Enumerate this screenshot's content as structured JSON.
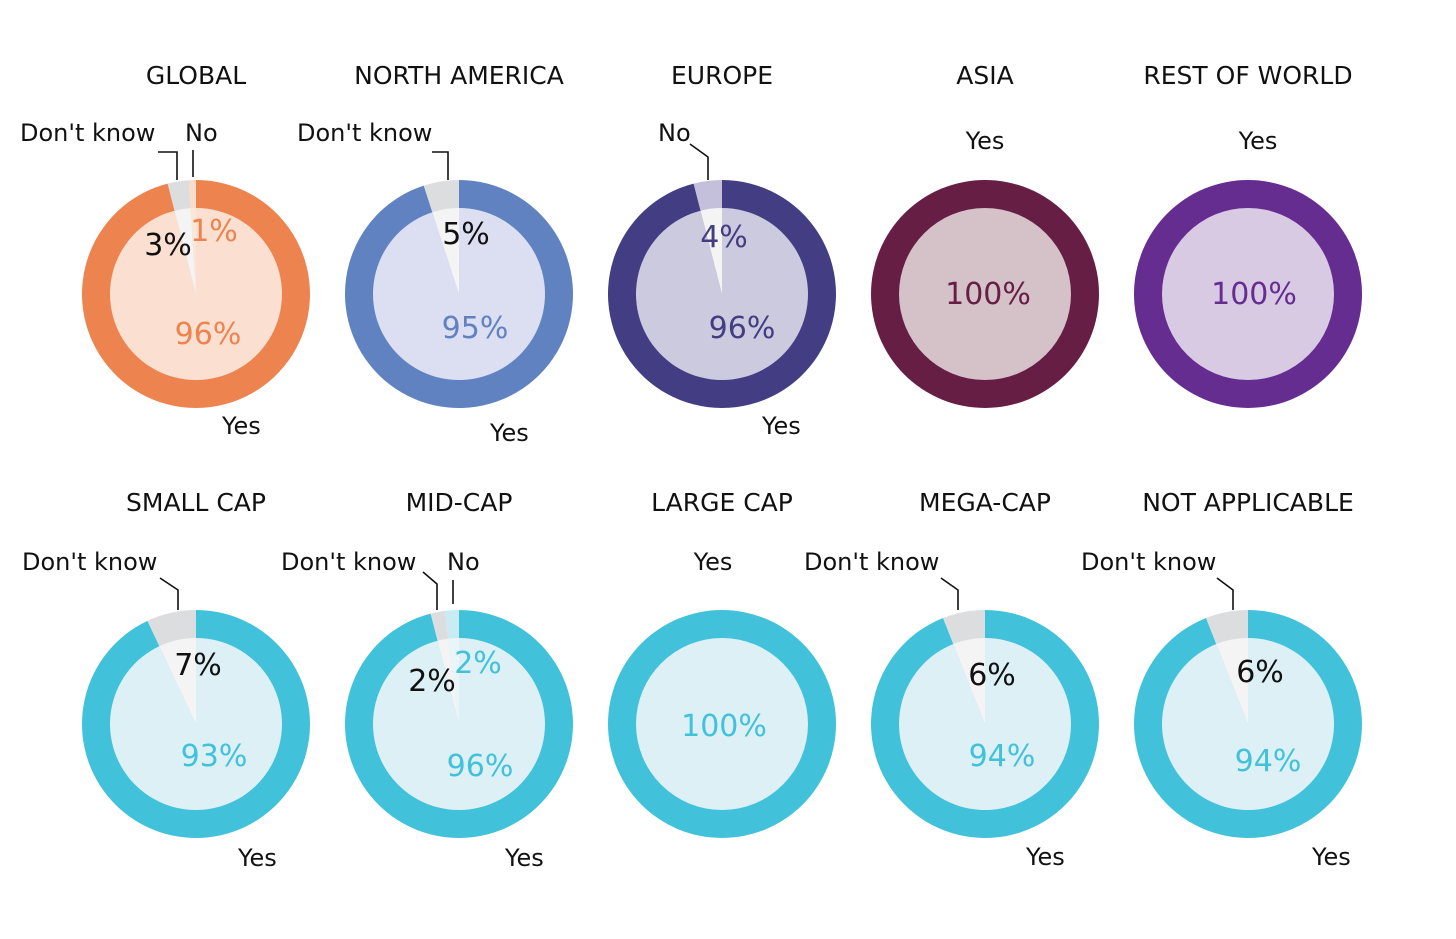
{
  "chart_data": [
    {
      "type": "pie",
      "title": "GLOBAL",
      "categories": [
        "Yes",
        "No",
        "Don't know"
      ],
      "values": [
        96,
        1,
        3
      ],
      "colors": {
        "ring": "#ED834E",
        "inner": "#FBE0D2",
        "minor_ring": "#DCDDDF",
        "minor_inner": "#F4F4F4",
        "no_ring": "#F9DCC9",
        "no_inner": "#FBE7DA",
        "text": "#ED834E"
      },
      "labels": {
        "yes": "Yes",
        "no": "No",
        "dk": "Don't know"
      },
      "pct": {
        "yes": "96%",
        "no": "1%",
        "dk": "3%"
      }
    },
    {
      "type": "pie",
      "title": "NORTH AMERICA",
      "categories": [
        "Yes",
        "Don't know"
      ],
      "values": [
        95,
        5
      ],
      "colors": {
        "ring": "#6182C1",
        "inner": "#DCDFF1",
        "minor_ring": "#DCDDDF",
        "minor_inner": "#F4F4F4",
        "text": "#6182C1"
      },
      "labels": {
        "yes": "Yes",
        "dk": "Don't know"
      },
      "pct": {
        "yes": "95%",
        "dk": "5%"
      }
    },
    {
      "type": "pie",
      "title": "EUROPE",
      "categories": [
        "Yes",
        "No"
      ],
      "values": [
        96,
        4
      ],
      "colors": {
        "ring": "#433E83",
        "inner": "#CCCADF",
        "minor_ring": "#C4C0DC",
        "minor_inner": "#F4F4F4",
        "text": "#433E83"
      },
      "labels": {
        "yes": "Yes",
        "no": "No"
      },
      "pct": {
        "yes": "96%",
        "no": "4%"
      }
    },
    {
      "type": "pie",
      "title": "ASIA",
      "categories": [
        "Yes"
      ],
      "values": [
        100
      ],
      "colors": {
        "ring": "#661E45",
        "inner": "#D4C2C8",
        "text": "#661E45"
      },
      "labels": {
        "yes": "Yes"
      },
      "pct": {
        "yes": "100%"
      }
    },
    {
      "type": "pie",
      "title": "REST OF WORLD",
      "categories": [
        "Yes"
      ],
      "values": [
        100
      ],
      "colors": {
        "ring": "#662D91",
        "inner": "#D9CAE3",
        "text": "#662D91"
      },
      "labels": {
        "yes": "Yes"
      },
      "pct": {
        "yes": "100%"
      }
    },
    {
      "type": "pie",
      "title": "SMALL CAP",
      "categories": [
        "Yes",
        "Don't know"
      ],
      "values": [
        93,
        7
      ],
      "colors": {
        "ring": "#41C1DA",
        "inner": "#DCF0F6",
        "minor_ring": "#DCDDDF",
        "minor_inner": "#F4F4F4",
        "text": "#41C1DA"
      },
      "labels": {
        "yes": "Yes",
        "dk": "Don't know"
      },
      "pct": {
        "yes": "93%",
        "dk": "7%"
      }
    },
    {
      "type": "pie",
      "title": "MID-CAP",
      "categories": [
        "Yes",
        "No",
        "Don't know"
      ],
      "values": [
        96,
        2,
        2
      ],
      "colors": {
        "ring": "#41C1DA",
        "inner": "#DCF0F6",
        "minor_ring": "#DCDDDF",
        "minor_inner": "#F4F4F4",
        "no_ring": "#C9ECF4",
        "no_inner": "#E8F6FA",
        "text": "#41C1DA"
      },
      "labels": {
        "yes": "Yes",
        "no": "No",
        "dk": "Don't know"
      },
      "pct": {
        "yes": "96%",
        "no": "2%",
        "dk": "2%"
      }
    },
    {
      "type": "pie",
      "title": "LARGE CAP",
      "categories": [
        "Yes"
      ],
      "values": [
        100
      ],
      "colors": {
        "ring": "#41C1DA",
        "inner": "#DCF0F6",
        "text": "#41C1DA"
      },
      "labels": {
        "yes": "Yes"
      },
      "pct": {
        "yes": "100%"
      }
    },
    {
      "type": "pie",
      "title": "MEGA-CAP",
      "categories": [
        "Yes",
        "Don't know"
      ],
      "values": [
        94,
        6
      ],
      "colors": {
        "ring": "#41C1DA",
        "inner": "#DCF0F6",
        "minor_ring": "#DCDDDF",
        "minor_inner": "#F4F4F4",
        "text": "#41C1DA"
      },
      "labels": {
        "yes": "Yes",
        "dk": "Don't know"
      },
      "pct": {
        "yes": "94%",
        "dk": "6%"
      }
    },
    {
      "type": "pie",
      "title": "NOT APPLICABLE",
      "categories": [
        "Yes",
        "Don't know"
      ],
      "values": [
        94,
        6
      ],
      "colors": {
        "ring": "#41C1DA",
        "inner": "#DCF0F6",
        "minor_ring": "#DCDDDF",
        "minor_inner": "#F4F4F4",
        "text": "#41C1DA"
      },
      "labels": {
        "yes": "Yes",
        "dk": "Don't know"
      },
      "pct": {
        "yes": "94%",
        "dk": "6%"
      }
    }
  ]
}
